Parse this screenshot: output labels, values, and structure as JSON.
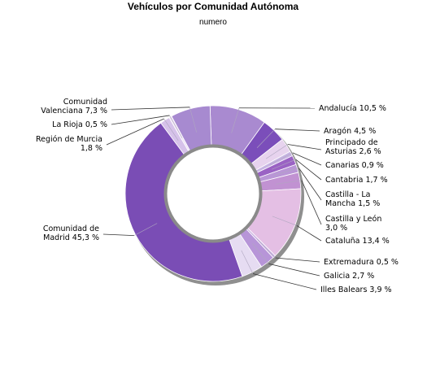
{
  "chart_data": {
    "type": "pie",
    "donut": true,
    "title": "Vehículos por Comunidad Autónoma",
    "subtitle": "numero",
    "slices": [
      {
        "label": [
          "Andalucía 10,5 %"
        ],
        "value": 10.5,
        "color": "#a98ad0"
      },
      {
        "label": [
          "Aragón 4,5 %"
        ],
        "value": 4.5,
        "color": "#7b4eba"
      },
      {
        "label": [
          "Principado de",
          "Asturias 2,6 %"
        ],
        "value": 2.6,
        "color": "#e7d3ee"
      },
      {
        "label": [
          "Canarias 0,9 %"
        ],
        "value": 0.9,
        "color": "#c6b4e2"
      },
      {
        "label": [
          "Cantabria 1,7 %"
        ],
        "value": 1.7,
        "color": "#9a62c4"
      },
      {
        "label": [
          "Castilla - La",
          "Mancha 1,5 %"
        ],
        "value": 1.5,
        "color": "#b996d6"
      },
      {
        "label": [
          "Castilla y León",
          "3,0 %"
        ],
        "value": 3.0,
        "color": "#c192d2"
      },
      {
        "label": [
          "Cataluña 13,4 %"
        ],
        "value": 13.4,
        "color": "#e4bfe4"
      },
      {
        "label": [
          "Extremadura 0,5 %"
        ],
        "value": 0.5,
        "color": "#c7aee0"
      },
      {
        "label": [
          "Galicia 2,7 %"
        ],
        "value": 2.7,
        "color": "#b795d8"
      },
      {
        "label": [
          "Illes Balears 3,9 %"
        ],
        "value": 3.9,
        "color": "#e6dcf2"
      },
      {
        "label": [
          "Comunidad de",
          "Madrid 45,3 %"
        ],
        "value": 45.3,
        "color": "#7a4db5"
      },
      {
        "label": [
          "Región de Murcia",
          "1,8 %"
        ],
        "value": 1.8,
        "color": "#d6c2ea"
      },
      {
        "label": [
          "La Rioja 0,5 %"
        ],
        "value": 0.5,
        "color": "#ede2f4"
      },
      {
        "label": [
          "Comunidad",
          "Valenciana 7,3 %"
        ],
        "value": 7.3,
        "color": "#a78ad0"
      }
    ]
  }
}
